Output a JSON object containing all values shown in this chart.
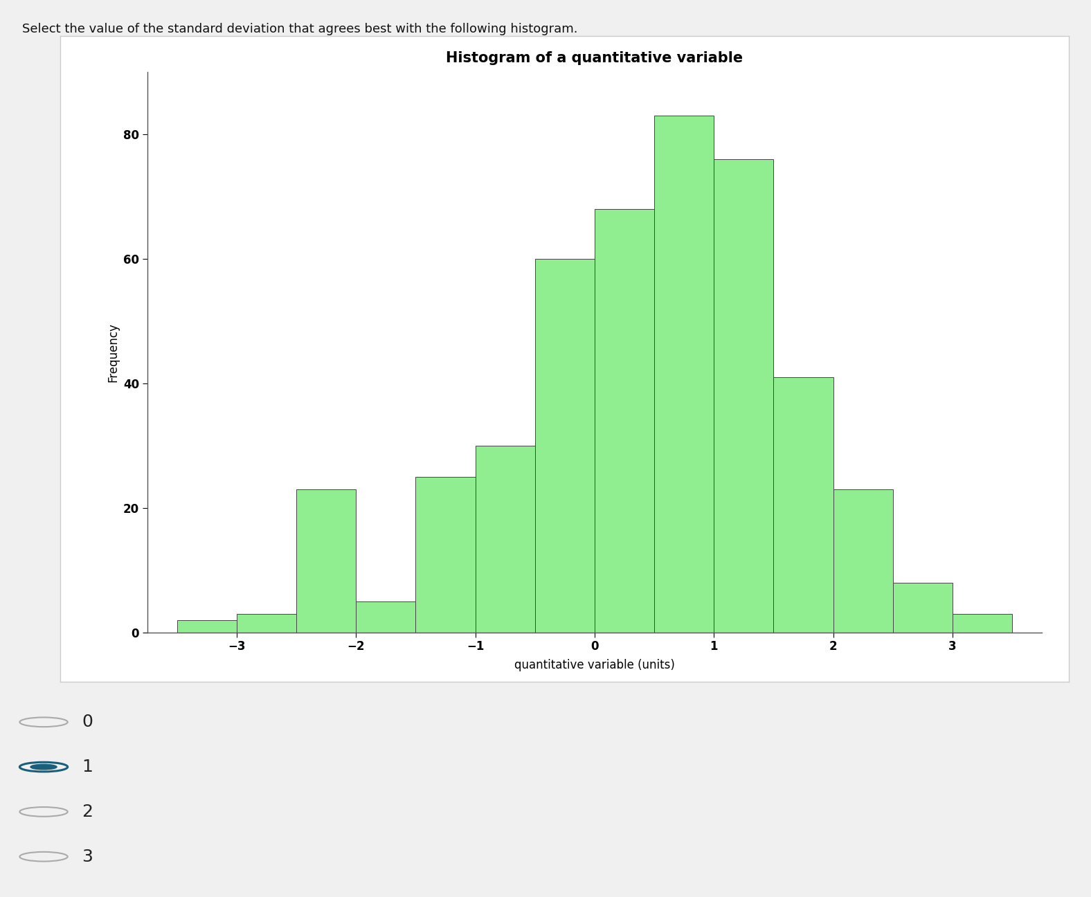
{
  "title": "Histogram of a quantitative variable",
  "xlabel": "quantitative variable (units)",
  "ylabel": "Frequency",
  "bar_edges": [
    -3.5,
    -3.0,
    -2.5,
    -2.0,
    -1.5,
    -1.0,
    -0.5,
    0.0,
    0.5,
    1.0,
    1.5,
    2.0,
    2.5,
    3.0,
    3.5
  ],
  "bar_heights": [
    2,
    3,
    23,
    5,
    25,
    30,
    60,
    68,
    83,
    76,
    41,
    23,
    8,
    3
  ],
  "bar_color": "#90EE90",
  "bar_edge_color": "#444444",
  "ylim": [
    0,
    90
  ],
  "xlim": [
    -3.75,
    3.75
  ],
  "yticks": [
    0,
    20,
    40,
    60,
    80
  ],
  "xticks": [
    -3,
    -2,
    -1,
    0,
    1,
    2,
    3
  ],
  "plot_bg": "#ffffff",
  "page_bg": "#f0f0f0",
  "title_fontsize": 15,
  "axis_label_fontsize": 12,
  "tick_fontsize": 12,
  "header_text": "Select the value of the standard deviation that agrees best with the following histogram.",
  "options": [
    "0",
    "1",
    "2",
    "3"
  ],
  "selected_option": 1,
  "option_fontsize": 18,
  "radio_selected_color": "#1a5f7a",
  "radio_unselected_color": "#aaaaaa",
  "btn_color": "#2d2d2d"
}
